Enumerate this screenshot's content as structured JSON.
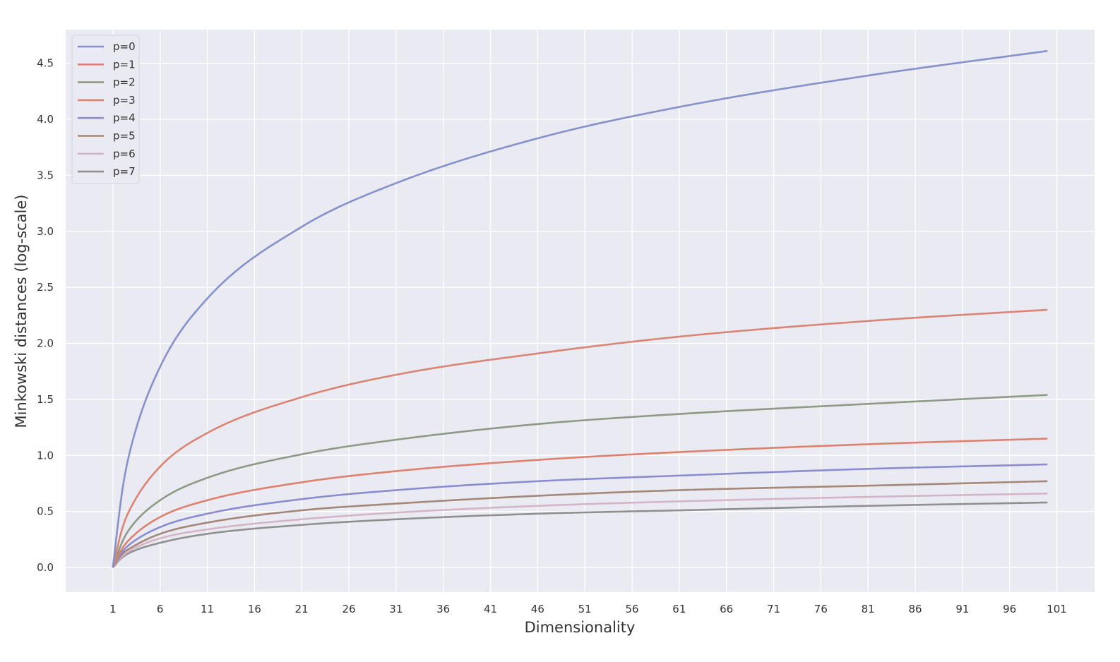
{
  "chart_data": {
    "type": "line",
    "xlabel": "Dimensionality",
    "ylabel": "Minkowski distances (log-scale)",
    "xlim": [
      -4,
      105
    ],
    "ylim": [
      -0.22,
      4.8
    ],
    "x_ticks": [
      1,
      6,
      11,
      16,
      21,
      26,
      31,
      36,
      41,
      46,
      51,
      56,
      61,
      66,
      71,
      76,
      81,
      86,
      91,
      96,
      101
    ],
    "y_ticks": [
      0.0,
      0.5,
      1.0,
      1.5,
      2.0,
      2.5,
      3.0,
      3.5,
      4.0,
      4.5
    ],
    "y_tick_labels": [
      "0.0",
      "0.5",
      "1.0",
      "1.5",
      "2.0",
      "2.5",
      "3.0",
      "3.5",
      "4.0",
      "4.5"
    ],
    "x_range": [
      1,
      100
    ],
    "grid": true,
    "legend_position": "top-left",
    "background_color": "#eaeaf2",
    "grid_color": "#ffffff",
    "series": [
      {
        "name": "p=0",
        "color": "#8691c9",
        "x": [
          1,
          2,
          3,
          6,
          11,
          21,
          31,
          46,
          61,
          81,
          100
        ],
        "values": [
          0.0,
          0.69,
          1.1,
          1.79,
          2.4,
          3.04,
          3.43,
          3.83,
          4.11,
          4.39,
          4.61
        ]
      },
      {
        "name": "p=1",
        "color": "#da8474",
        "x": [
          1,
          2,
          3,
          6,
          11,
          21,
          31,
          46,
          61,
          81,
          100
        ],
        "values": [
          0.0,
          0.35,
          0.55,
          0.9,
          1.2,
          1.52,
          1.72,
          1.91,
          2.06,
          2.2,
          2.3
        ]
      },
      {
        "name": "p=2",
        "color": "#8d9a86",
        "x": [
          1,
          2,
          3,
          6,
          11,
          21,
          31,
          46,
          61,
          81,
          100
        ],
        "values": [
          0.0,
          0.23,
          0.37,
          0.6,
          0.8,
          1.01,
          1.14,
          1.28,
          1.37,
          1.46,
          1.54
        ]
      },
      {
        "name": "p=3",
        "color": "#de806e",
        "x": [
          1,
          2,
          3,
          6,
          11,
          21,
          31,
          46,
          61,
          81,
          100
        ],
        "values": [
          0.0,
          0.17,
          0.27,
          0.45,
          0.6,
          0.76,
          0.86,
          0.96,
          1.03,
          1.1,
          1.15
        ]
      },
      {
        "name": "p=4",
        "color": "#8a8cd0",
        "x": [
          1,
          2,
          3,
          6,
          11,
          21,
          31,
          46,
          61,
          81,
          100
        ],
        "values": [
          0.0,
          0.14,
          0.22,
          0.36,
          0.48,
          0.61,
          0.69,
          0.77,
          0.82,
          0.88,
          0.92
        ]
      },
      {
        "name": "p=5",
        "color": "#a58778",
        "x": [
          1,
          2,
          3,
          6,
          11,
          21,
          31,
          46,
          61,
          81,
          100
        ],
        "values": [
          0.0,
          0.12,
          0.18,
          0.3,
          0.4,
          0.51,
          0.57,
          0.64,
          0.69,
          0.73,
          0.77
        ]
      },
      {
        "name": "p=6",
        "color": "#d4b5c8",
        "x": [
          1,
          2,
          3,
          6,
          11,
          21,
          31,
          46,
          61,
          81,
          100
        ],
        "values": [
          0.0,
          0.1,
          0.16,
          0.26,
          0.34,
          0.43,
          0.49,
          0.55,
          0.59,
          0.63,
          0.66
        ]
      },
      {
        "name": "p=7",
        "color": "#8f8f8f",
        "x": [
          1,
          2,
          3,
          6,
          11,
          21,
          31,
          46,
          61,
          81,
          100
        ],
        "values": [
          0.0,
          0.09,
          0.14,
          0.22,
          0.3,
          0.38,
          0.43,
          0.48,
          0.51,
          0.55,
          0.58
        ]
      }
    ]
  }
}
